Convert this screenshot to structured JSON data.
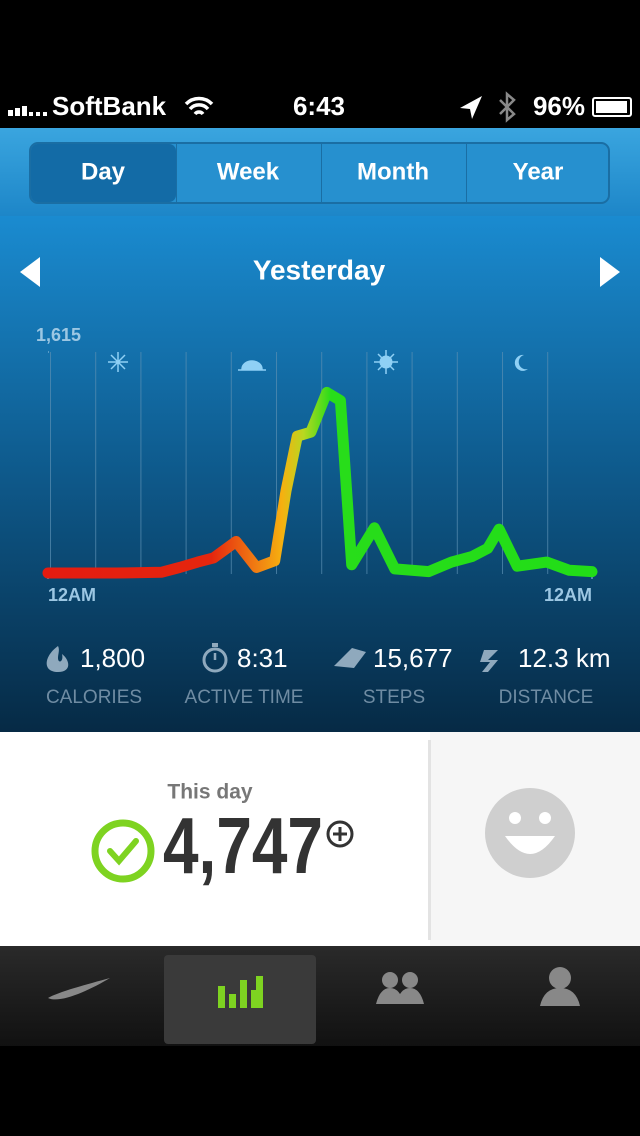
{
  "status_bar": {
    "carrier": "SoftBank",
    "time": "6:43",
    "battery": "96%"
  },
  "tabs": [
    "Day",
    "Week",
    "Month",
    "Year"
  ],
  "date_label": "Yesterday",
  "chart": {
    "type": "line",
    "ylim": [
      0,
      1615
    ],
    "yticks": [
      {
        "value": 1615,
        "label": "1,615"
      }
    ],
    "xlim": [
      0,
      24
    ],
    "xticks": [
      {
        "value": 0,
        "label": "12AM"
      },
      {
        "value": 24,
        "label": "12AM"
      }
    ],
    "x": [
      0,
      3,
      5,
      5.8,
      6.6,
      7.3,
      8.3,
      9.2,
      10,
      10.5,
      11,
      11.6,
      12.3,
      12.9,
      13.4,
      14.4,
      15.3,
      16.8,
      17.8,
      18.7,
      19.4,
      19.9,
      20.7,
      22,
      23,
      24
    ],
    "values": [
      0,
      0,
      5,
      40,
      80,
      110,
      230,
      40,
      90,
      600,
      1000,
      1030,
      1320,
      1260,
      60,
      330,
      30,
      10,
      80,
      120,
      180,
      320,
      50,
      80,
      20,
      10
    ]
  },
  "stats": [
    {
      "value": "1,800",
      "label": "CALORIES"
    },
    {
      "value": "8:31",
      "label": "ACTIVE TIME"
    },
    {
      "value": "15,677",
      "label": "STEPS"
    },
    {
      "value": "12.3 km",
      "label": "DISTANCE"
    }
  ],
  "summary": {
    "label": "This day",
    "value": "4,747"
  },
  "nav": [
    "Home",
    "Activity",
    "Friends",
    "Me"
  ]
}
